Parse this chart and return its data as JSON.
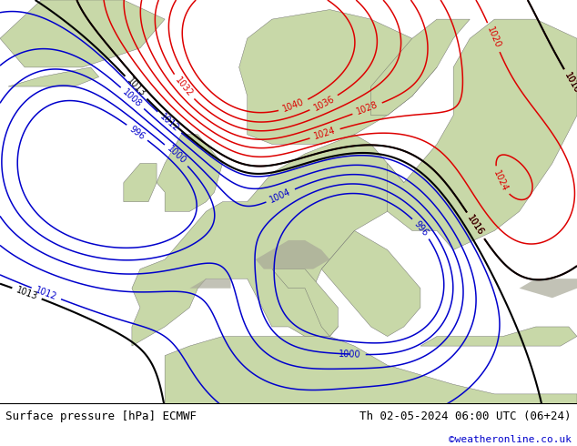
{
  "title_left": "Surface pressure [hPa] ECMWF",
  "title_right": "Th 02-05-2024 06:00 UTC (06+24)",
  "copyright": "©weatheronline.co.uk",
  "ocean_color": "#b8d4e8",
  "land_color": "#c8d8a8",
  "mountain_color": "#a8a898",
  "footer_bg": "#ffffff",
  "red_contour_color": "#dd0000",
  "blue_contour_color": "#0000cc",
  "black_contour_color": "#000000",
  "contour_linewidth": 1.1,
  "label_fontsize": 7.0,
  "footer_fontsize": 9,
  "copyright_fontsize": 8,
  "copyright_color": "#0000cc",
  "lon_min": -25,
  "lon_max": 45,
  "lat_min": 30,
  "lat_max": 72
}
